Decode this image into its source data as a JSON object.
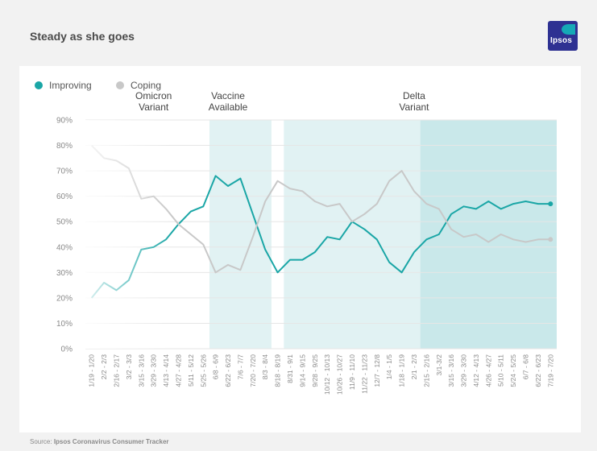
{
  "header": {
    "title": "Steady as she goes",
    "logo_text": "Ipsos"
  },
  "footer": {
    "source_label": "Source:",
    "source_text": "Ipsos Coronavirus Consumer Tracker"
  },
  "colors": {
    "improving": "#1aa6a6",
    "coping": "#c8c8c8",
    "shade_light": "#e1f2f3",
    "shade_dark": "#c9e8ea",
    "grid": "#e6e6e6",
    "axis_text": "#8a8a8a"
  },
  "chart_data": {
    "type": "line",
    "title": "Steady as she goes",
    "xlabel": "",
    "ylabel": "",
    "ylim": [
      0,
      90
    ],
    "y_ticks": [
      "0%",
      "10%",
      "20%",
      "30%",
      "40%",
      "50%",
      "60%",
      "70%",
      "80%",
      "90%"
    ],
    "grid": true,
    "legend_position": "top-left",
    "categories": [
      "1/19 - 1/20",
      "2/2 - 2/3",
      "2/16 - 2/17",
      "3/2 - 3/3",
      "3/15 - 3/16",
      "3/29 - 3/30",
      "4/13 - 4/14",
      "4/27 - 4/28",
      "5/11 - 5/12",
      "5/25 - 5/26",
      "6/8 - 6/9",
      "6/22 - 6/23",
      "7/6 - 7/7",
      "7/20 - 7/20",
      "8/3 - 8/4",
      "8/18 - 8/19",
      "8/31 - 9/1",
      "9/14 - 9/15",
      "9/28 - 9/25",
      "10/12 - 10/13",
      "10/26 - 10/27",
      "11/9 - 11/10",
      "11/22 - 11/23",
      "12/7 - 12/8",
      "1/4 - 1/5",
      "1/18 - 1/19",
      "2/1 - 2/3",
      "2/15 - 2/16",
      "3/1-3/2",
      "3/15 - 3/16",
      "3/29 - 3/30",
      "4/12 - 4/13",
      "4/26 - 4/27",
      "5/10 - 5/11",
      "5/24 - 5/25",
      "6/7 - 6/8",
      "6/22 - 6/23",
      "7/19 - 7/20"
    ],
    "series": [
      {
        "name": "Improving",
        "values": [
          20,
          26,
          23,
          27,
          39,
          40,
          43,
          49,
          54,
          56,
          68,
          64,
          67,
          53,
          39,
          30,
          35,
          35,
          38,
          44,
          43,
          50,
          47,
          43,
          34,
          30,
          38,
          43,
          45,
          53,
          56,
          55,
          58,
          55,
          57,
          58,
          57,
          57
        ]
      },
      {
        "name": "Coping",
        "values": [
          80,
          75,
          74,
          71,
          59,
          60,
          55,
          49,
          45,
          41,
          30,
          33,
          31,
          44,
          58,
          66,
          63,
          62,
          58,
          56,
          57,
          50,
          53,
          57,
          66,
          70,
          62,
          57,
          55,
          47,
          44,
          45,
          42,
          45,
          43,
          42,
          43,
          43
        ]
      }
    ],
    "shaded_ranges": [
      {
        "from": "6/8 - 6/9",
        "to": "8/3 - 8/4",
        "shade": "light"
      },
      {
        "from": "8/31 - 9/1",
        "to": "2/1 - 2/3",
        "shade": "light"
      },
      {
        "from": "2/15 - 2/16",
        "to": "7/19 - 7/20",
        "shade": "dark"
      }
    ],
    "annotations": [
      {
        "lines": [
          "Vaccine",
          "Available"
        ],
        "category": "6/22 - 6/23"
      },
      {
        "lines": [
          "Delta",
          "Variant"
        ],
        "category": "2/1 - 2/3"
      },
      {
        "lines": [
          "Omicron",
          "Variant"
        ],
        "category": "3/29 - 3/30"
      }
    ]
  }
}
